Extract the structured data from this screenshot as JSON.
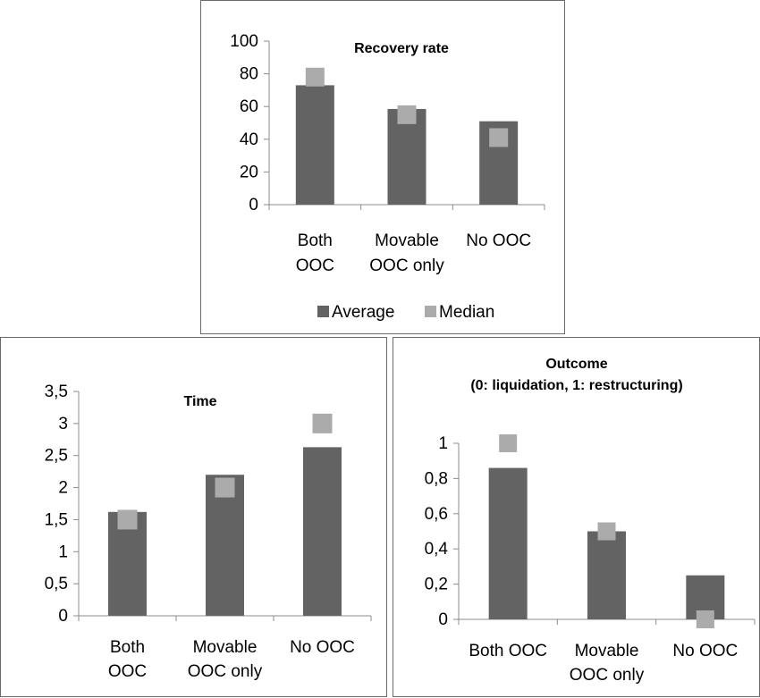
{
  "colors": {
    "average": "#636363",
    "median": "#ababab",
    "axis": "#8c8c8c"
  },
  "legend": {
    "average_label": "Average",
    "median_label": "Median"
  },
  "chart_data": [
    {
      "type": "bar",
      "title": "Recovery rate",
      "categories": [
        [
          "Both",
          "OOC"
        ],
        [
          "Movable",
          "OOC only"
        ],
        [
          "No OOC"
        ]
      ],
      "series": [
        {
          "name": "Average",
          "kind": "bar",
          "values": [
            73,
            58.5,
            51
          ]
        },
        {
          "name": "Median",
          "kind": "marker",
          "values": [
            78,
            55,
            41
          ]
        }
      ],
      "yticks": [
        "0",
        "20",
        "40",
        "60",
        "80",
        "100"
      ],
      "ylim": [
        0,
        100
      ],
      "legend": "bottom"
    },
    {
      "type": "bar",
      "title": "Time",
      "categories": [
        [
          "Both",
          "OOC"
        ],
        [
          "Movable",
          "OOC only"
        ],
        [
          "No OOC"
        ]
      ],
      "series": [
        {
          "name": "Average",
          "kind": "bar",
          "values": [
            1.62,
            2.2,
            2.63
          ]
        },
        {
          "name": "Median",
          "kind": "marker",
          "values": [
            1.5,
            2,
            3
          ]
        }
      ],
      "yticks": [
        "0",
        "0,5",
        "1",
        "1,5",
        "2",
        "2,5",
        "3",
        "3,5"
      ],
      "ylim": [
        0,
        3.5
      ]
    },
    {
      "type": "bar",
      "title": [
        "Outcome",
        "(0: liquidation, 1: restructuring)"
      ],
      "categories": [
        [
          "Both OOC"
        ],
        [
          "Movable",
          "OOC only"
        ],
        [
          "No OOC"
        ]
      ],
      "series": [
        {
          "name": "Average",
          "kind": "bar",
          "values": [
            0.86,
            0.5,
            0.25
          ]
        },
        {
          "name": "Median",
          "kind": "marker",
          "values": [
            1,
            0.5,
            0
          ]
        }
      ],
      "yticks": [
        "0",
        "0,2",
        "0,4",
        "0,6",
        "0,8",
        "1"
      ],
      "ylim": [
        0,
        1
      ]
    }
  ]
}
